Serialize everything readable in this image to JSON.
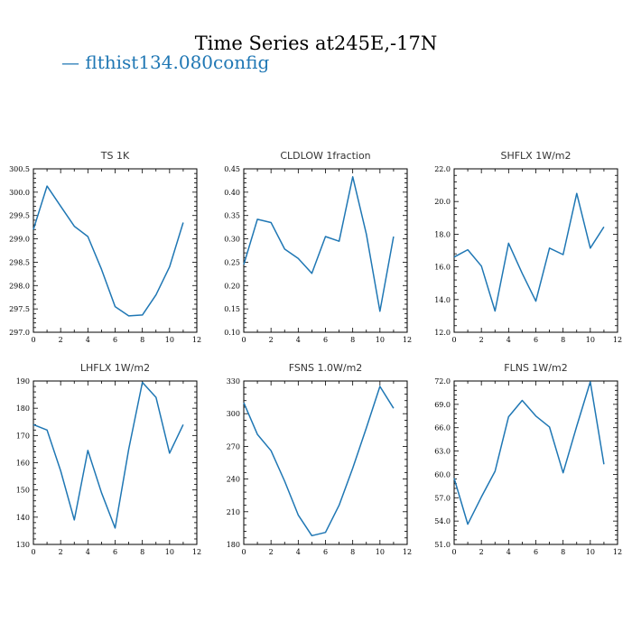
{
  "figure": {
    "title": "Time Series at245E,-17N",
    "legend": {
      "label": "— flthist134.080config",
      "color": "#1f77b4"
    }
  },
  "chart_data": [
    {
      "type": "line",
      "title": "TS   1K",
      "x": [
        0,
        1,
        2,
        3,
        4,
        5,
        6,
        7,
        8,
        9,
        10,
        11
      ],
      "series": [
        {
          "values": [
            299.2,
            300.13,
            299.7,
            299.27,
            299.05,
            298.35,
            297.55,
            297.35,
            297.37,
            297.8,
            298.4,
            299.35
          ],
          "color": "#1f77b4"
        }
      ],
      "xlim": [
        0,
        12
      ],
      "xticks": [
        0,
        2,
        4,
        6,
        8,
        10,
        12
      ],
      "ylim": [
        297.0,
        300.5
      ],
      "yticks": [
        297.0,
        297.5,
        298.0,
        298.5,
        299.0,
        299.5,
        300.0,
        300.5
      ],
      "ytick_labels": [
        "297.0",
        "297.5",
        "298.0",
        "298.5",
        "299.0",
        "299.5",
        "300.0",
        "300.5"
      ]
    },
    {
      "type": "line",
      "title": "CLDLOW   1fraction",
      "x": [
        0,
        1,
        2,
        3,
        4,
        5,
        6,
        7,
        8,
        9,
        10,
        11
      ],
      "series": [
        {
          "values": [
            0.245,
            0.342,
            0.335,
            0.278,
            0.258,
            0.226,
            0.305,
            0.295,
            0.433,
            0.31,
            0.145,
            0.305
          ],
          "color": "#1f77b4"
        }
      ],
      "xlim": [
        0,
        12
      ],
      "xticks": [
        0,
        2,
        4,
        6,
        8,
        10,
        12
      ],
      "ylim": [
        0.1,
        0.45
      ],
      "yticks": [
        0.1,
        0.15,
        0.2,
        0.25,
        0.3,
        0.35,
        0.4,
        0.45
      ],
      "ytick_labels": [
        "0.10",
        "0.15",
        "0.20",
        "0.25",
        "0.30",
        "0.35",
        "0.40",
        "0.45"
      ]
    },
    {
      "type": "line",
      "title": "SHFLX   1W/m2",
      "x": [
        0,
        1,
        2,
        3,
        4,
        5,
        6,
        7,
        8,
        9,
        10,
        11
      ],
      "series": [
        {
          "values": [
            16.6,
            17.05,
            16.05,
            13.3,
            17.45,
            15.6,
            13.9,
            17.15,
            16.75,
            20.5,
            17.15,
            18.45
          ],
          "color": "#1f77b4"
        }
      ],
      "xlim": [
        0,
        12
      ],
      "xticks": [
        0,
        2,
        4,
        6,
        8,
        10,
        12
      ],
      "ylim": [
        12.0,
        22.0
      ],
      "yticks": [
        12.0,
        14.0,
        16.0,
        18.0,
        20.0,
        22.0
      ],
      "ytick_labels": [
        "12.0",
        "14.0",
        "16.0",
        "18.0",
        "20.0",
        "22.0"
      ]
    },
    {
      "type": "line",
      "title": "LHFLX   1W/m2",
      "x": [
        0,
        1,
        2,
        3,
        4,
        5,
        6,
        7,
        8,
        9,
        10,
        11
      ],
      "series": [
        {
          "values": [
            174,
            172,
            157,
            139,
            164.5,
            149,
            136,
            165,
            189.5,
            184,
            163.5,
            174
          ],
          "color": "#1f77b4"
        }
      ],
      "xlim": [
        0,
        12
      ],
      "xticks": [
        0,
        2,
        4,
        6,
        8,
        10,
        12
      ],
      "ylim": [
        130,
        190
      ],
      "yticks": [
        130,
        140,
        150,
        160,
        170,
        180,
        190
      ],
      "ytick_labels": [
        "130",
        "140",
        "150",
        "160",
        "170",
        "180",
        "190"
      ]
    },
    {
      "type": "line",
      "title": "FSNS   1.0W/m2",
      "x": [
        0,
        1,
        2,
        3,
        4,
        5,
        6,
        7,
        8,
        9,
        10,
        11
      ],
      "series": [
        {
          "values": [
            310,
            281,
            266,
            238,
            207,
            188,
            191,
            216,
            250,
            287,
            325,
            305
          ],
          "color": "#1f77b4"
        }
      ],
      "xlim": [
        0,
        12
      ],
      "xticks": [
        0,
        2,
        4,
        6,
        8,
        10,
        12
      ],
      "ylim": [
        180,
        330
      ],
      "yticks": [
        180,
        210,
        240,
        270,
        300,
        330
      ],
      "ytick_labels": [
        "180",
        "210",
        "240",
        "270",
        "300",
        "330"
      ]
    },
    {
      "type": "line",
      "title": "FLNS   1W/m2",
      "x": [
        0,
        1,
        2,
        3,
        4,
        5,
        6,
        7,
        8,
        9,
        10,
        11
      ],
      "series": [
        {
          "values": [
            59.5,
            53.6,
            57.1,
            60.4,
            67.4,
            69.5,
            67.5,
            66.1,
            60.2,
            66.2,
            71.9,
            61.3
          ],
          "color": "#1f77b4"
        }
      ],
      "xlim": [
        0,
        12
      ],
      "xticks": [
        0,
        2,
        4,
        6,
        8,
        10,
        12
      ],
      "ylim": [
        51.0,
        72.0
      ],
      "yticks": [
        51.0,
        54.0,
        57.0,
        60.0,
        63.0,
        66.0,
        69.0,
        72.0
      ],
      "ytick_labels": [
        "51.0",
        "54.0",
        "57.0",
        "60.0",
        "63.0",
        "66.0",
        "69.0",
        "72.0"
      ]
    }
  ]
}
